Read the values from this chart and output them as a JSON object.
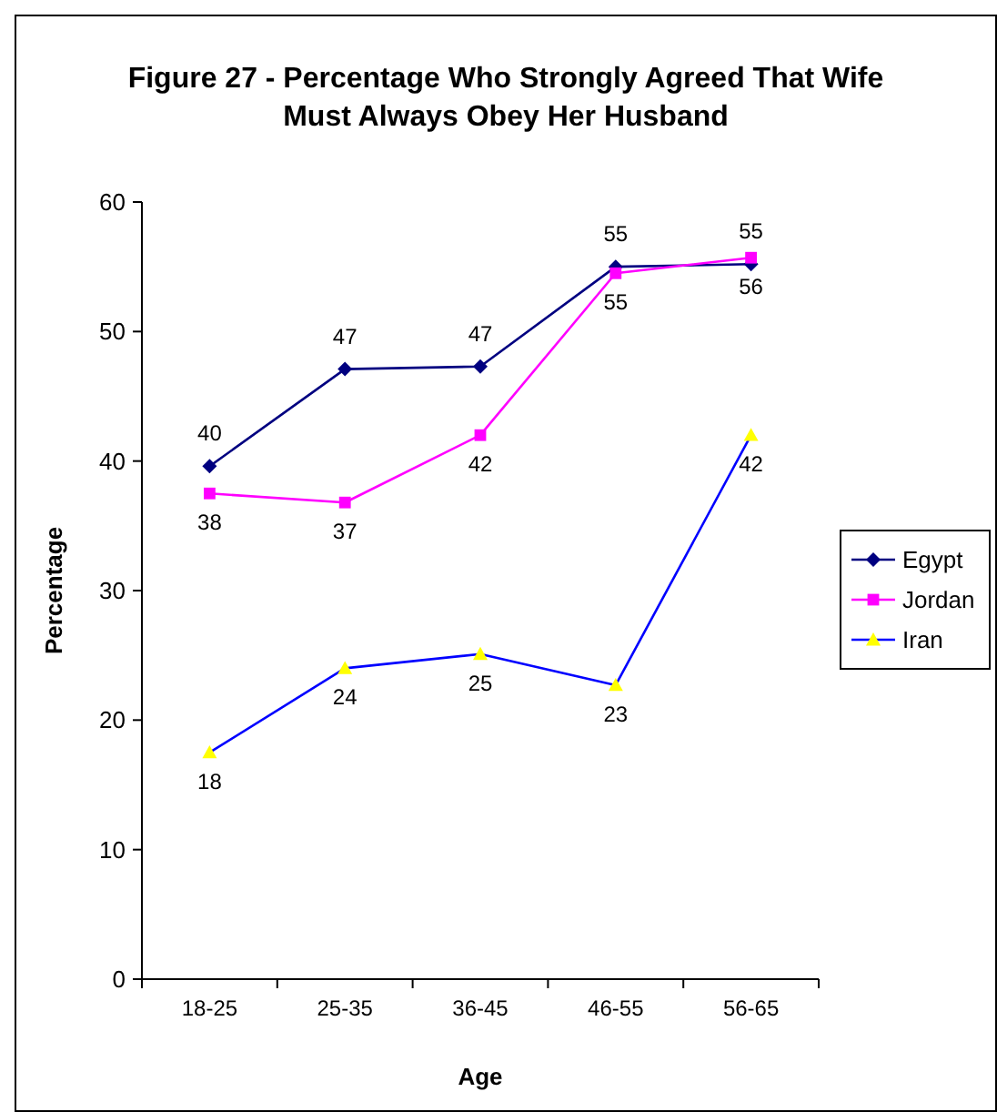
{
  "chart_data": {
    "type": "line",
    "title": "Figure 27 - Percentage Who Strongly Agreed That Wife Must Always Obey Her Husband",
    "xlabel": "Age",
    "ylabel": "Percentage",
    "categories": [
      "18-25",
      "25-35",
      "36-45",
      "46-55",
      "56-65"
    ],
    "ylim": [
      0,
      60
    ],
    "yticks": [
      0,
      10,
      20,
      30,
      40,
      50,
      60
    ],
    "grid": false,
    "legend": "right",
    "series": [
      {
        "name": "Egypt",
        "color": "#000080",
        "marker": "diamond",
        "values": [
          39.6,
          47.1,
          47.3,
          55,
          55.2
        ],
        "value_labels": [
          "40",
          "47",
          "47",
          "55",
          "55"
        ]
      },
      {
        "name": "Jordan",
        "color": "#ff00ff",
        "marker": "square",
        "values": [
          37.5,
          36.8,
          42,
          54.5,
          55.7
        ],
        "value_labels": [
          "38",
          "37",
          "42",
          "55",
          "56"
        ]
      },
      {
        "name": "Iran",
        "color": "#0000ff",
        "colors": [
          "#ffff00",
          "#ffff00",
          "#ffff00",
          "#ffff00",
          "#ffff00"
        ],
        "marker": "triangle",
        "values": [
          17.5,
          24,
          25.1,
          22.7,
          42
        ],
        "value_labels": [
          "18",
          "24",
          "25",
          "23",
          "42"
        ]
      }
    ]
  }
}
